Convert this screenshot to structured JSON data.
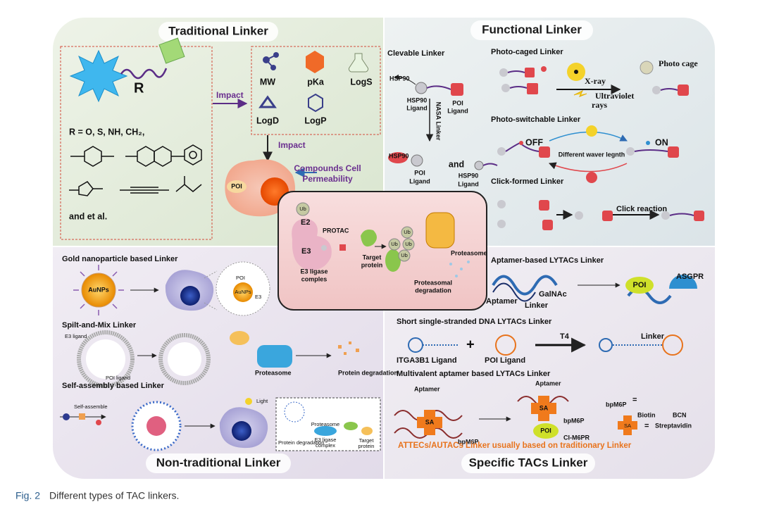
{
  "traditional": {
    "title": "Traditional Linker",
    "r": "R",
    "r_definition": "R = O, S, NH, CH₂,",
    "etc": "and et al.",
    "impact_right": "Impact",
    "impact_down": "Impact",
    "properties": [
      "MW",
      "pKa",
      "LogS",
      "LogD",
      "LogP"
    ],
    "permeability": [
      "Compounds Cell",
      "Permeability"
    ],
    "poi": "POI"
  },
  "functional": {
    "title": "Functional Linker",
    "clevable": {
      "title": "Clevable Linker",
      "hsp90": "HSP90",
      "hsp90_ligand": [
        "HSP90",
        "Ligand"
      ],
      "poi_ligand": [
        "POI",
        "Ligand"
      ],
      "nasa": "NASA Linker",
      "hsp90_b": "HSP90",
      "poi_ligand_b": [
        "POI",
        "Ligand"
      ],
      "and": "and",
      "hsp90_ligand_b": [
        "HSP90",
        "Ligand"
      ]
    },
    "photo_caged": {
      "title": "Photo-caged Linker",
      "xray": "X-ray",
      "uv": [
        "Ultraviolet",
        "rays"
      ],
      "cage": "Photo cage"
    },
    "photo_switchable": {
      "title": "Photo-switchable Linker",
      "off": "OFF",
      "on": "ON",
      "wavelength": "Different waver legnth"
    },
    "click": {
      "title": "Click-formed Linker",
      "reaction": "Click reaction"
    }
  },
  "protac": {
    "e2": "E2",
    "ub": [
      "Ub",
      "Ub",
      "Ub",
      "Ub",
      "Ub"
    ],
    "e3": "E3",
    "protac": "PROTAC",
    "target": [
      "Target",
      "protein"
    ],
    "e3_complex": [
      "E3 ligase",
      "comples"
    ],
    "proteasome": "Proteasome",
    "degradation": [
      "Proteasomal",
      "degradation"
    ]
  },
  "non_traditional": {
    "title": "Non-traditional Linker",
    "gold": {
      "title": "Gold nanoparticle based Linker",
      "aunps": "AuNPs",
      "poi": "POI",
      "aunps_inset": "AuNPs",
      "e3": "E3"
    },
    "split": {
      "title": "Spilt-and-Mix Linker",
      "e3_ligand": "E3 ligand",
      "poi_ligand": "POI ligand",
      "proteasome": "Proteasome",
      "degradation": "Protein degradation"
    },
    "self_assembly": {
      "title": "Self-assembly based Linker",
      "assemble": "Self-assemble",
      "light": "Light",
      "proteasome": "Proteasome",
      "degradation": "Protein degradation",
      "e3_complex": [
        "E3 ligase",
        "complex"
      ],
      "target": [
        "Target",
        "protein"
      ]
    }
  },
  "specific": {
    "title": "Specific TACs Linker",
    "aptamer_lytac": {
      "title": "Aptamer-based LYTACs Linker",
      "aptamer": "Aptamer",
      "linker": "Linker",
      "galnac": "GalNAc",
      "poi": "POI",
      "asgpr": "ASGPR"
    },
    "ssdna": {
      "title": "Short single-stranded DNA LYTACs Linker",
      "itga": "ITGA3B1 Ligand",
      "plus": "+",
      "poi_ligand": "POI Ligand",
      "t4": "T4",
      "linker": "Linker"
    },
    "multivalent": {
      "title": "Multivalent aptamer based LYTACs Linker",
      "aptamer_a": "Aptamer",
      "aptamer_b": "Aptamer",
      "sa_a": "SA",
      "sa_b": "SA",
      "bpm6p_a": "bpM6P",
      "bpm6p_b": "bpM6P",
      "poi": "POI",
      "ci_m6pr": "CI-M6PR",
      "bpm6p_key": "bpM6P",
      "eq_a": "=",
      "biotin": "Biotin",
      "bcn": "BCN",
      "sa_key": "SA",
      "eq_b": "=",
      "streptavidin": "Streptavidin"
    },
    "note": "ATTECs/AUTACs Linker usually based on traditionary Linker"
  },
  "caption": {
    "label": "Fig. 2",
    "text": "Different types of TAC linkers."
  }
}
